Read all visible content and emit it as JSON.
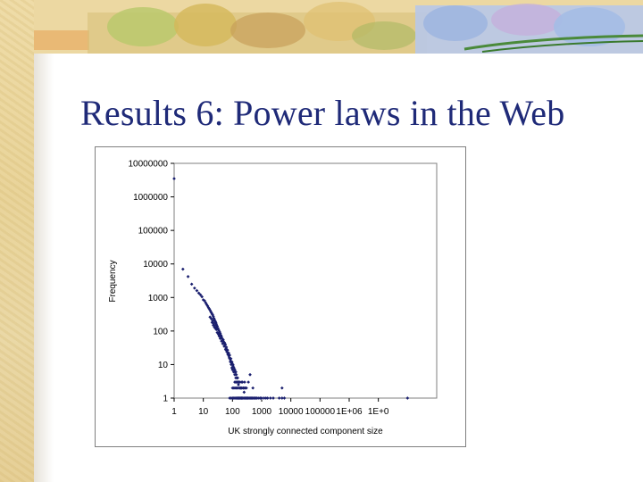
{
  "slide": {
    "title": "Results 6: Power laws in the Web",
    "colors": {
      "title": "#1f2a78",
      "marker": "#1a1f6e",
      "parchment": "#ead59f"
    }
  },
  "chart_data": {
    "type": "scatter",
    "xlabel": "UK strongly connected component size",
    "ylabel": "Frequency",
    "x_scale": "log",
    "y_scale": "log",
    "xlim": [
      1,
      1000000000
    ],
    "ylim": [
      1,
      10000000
    ],
    "x_tick_labels": [
      "1",
      "10",
      "100",
      "1000",
      "10000",
      "100000",
      "1E+06",
      "1E+0"
    ],
    "y_tick_labels": [
      "1",
      "10",
      "100",
      "1000",
      "10000",
      "100000",
      "1000000",
      "10000000"
    ],
    "grid": false,
    "legend": "none",
    "points": [
      [
        1,
        3500000
      ],
      [
        2,
        7000
      ],
      [
        3,
        4200
      ],
      [
        4,
        2500
      ],
      [
        5,
        1900
      ],
      [
        6,
        1600
      ],
      [
        7,
        1350
      ],
      [
        8,
        1200
      ],
      [
        9,
        1050
      ],
      [
        10,
        850
      ],
      [
        11,
        800
      ],
      [
        12,
        700
      ],
      [
        13,
        620
      ],
      [
        14,
        560
      ],
      [
        15,
        500
      ],
      [
        16,
        460
      ],
      [
        17,
        420
      ],
      [
        18,
        380
      ],
      [
        19,
        350
      ],
      [
        20,
        320
      ],
      [
        21,
        300
      ],
      [
        22,
        270
      ],
      [
        23,
        240
      ],
      [
        24,
        220
      ],
      [
        25,
        200
      ],
      [
        26,
        190
      ],
      [
        27,
        175
      ],
      [
        28,
        160
      ],
      [
        30,
        140
      ],
      [
        32,
        120
      ],
      [
        34,
        105
      ],
      [
        36,
        95
      ],
      [
        38,
        85
      ],
      [
        40,
        75
      ],
      [
        42,
        68
      ],
      [
        45,
        58
      ],
      [
        48,
        50
      ],
      [
        50,
        45
      ],
      [
        55,
        38
      ],
      [
        60,
        30
      ],
      [
        65,
        26
      ],
      [
        70,
        21
      ],
      [
        75,
        18
      ],
      [
        80,
        15
      ],
      [
        85,
        12
      ],
      [
        90,
        10
      ],
      [
        95,
        8
      ],
      [
        100,
        7
      ],
      [
        110,
        6
      ],
      [
        120,
        5
      ],
      [
        130,
        4
      ],
      [
        140,
        3
      ],
      [
        160,
        2.5
      ],
      [
        180,
        2
      ],
      [
        200,
        2
      ],
      [
        250,
        1.5
      ],
      [
        300,
        2
      ],
      [
        400,
        5
      ],
      [
        500,
        2
      ],
      [
        20,
        180
      ],
      [
        22,
        150
      ],
      [
        24,
        130
      ],
      [
        26,
        120
      ],
      [
        28,
        110
      ],
      [
        30,
        90
      ],
      [
        33,
        80
      ],
      [
        35,
        70
      ],
      [
        38,
        60
      ],
      [
        42,
        50
      ],
      [
        46,
        42
      ],
      [
        52,
        35
      ],
      [
        58,
        28
      ],
      [
        64,
        24
      ],
      [
        70,
        20
      ],
      [
        78,
        16
      ],
      [
        86,
        13
      ],
      [
        95,
        11
      ],
      [
        105,
        9
      ],
      [
        115,
        7
      ],
      [
        125,
        6
      ],
      [
        135,
        5
      ],
      [
        150,
        4
      ],
      [
        170,
        3
      ],
      [
        190,
        2
      ],
      [
        220,
        3
      ],
      [
        260,
        2
      ],
      [
        17,
        260
      ],
      [
        19,
        230
      ],
      [
        21,
        200
      ],
      [
        23,
        170
      ],
      [
        26,
        150
      ],
      [
        29,
        130
      ],
      [
        32,
        110
      ],
      [
        36,
        90
      ],
      [
        40,
        70
      ],
      [
        44,
        60
      ],
      [
        48,
        55
      ],
      [
        53,
        45
      ],
      [
        57,
        40
      ],
      [
        62,
        33
      ],
      [
        68,
        27
      ],
      [
        74,
        22
      ],
      [
        80,
        19
      ],
      [
        88,
        15
      ],
      [
        96,
        12
      ],
      [
        104,
        10
      ],
      [
        112,
        8
      ],
      [
        120,
        7
      ],
      [
        130,
        6
      ],
      [
        145,
        4
      ],
      [
        160,
        3
      ],
      [
        175,
        3
      ],
      [
        200,
        3
      ],
      [
        230,
        2
      ],
      [
        260,
        3
      ],
      [
        80,
        1
      ],
      [
        90,
        1
      ],
      [
        100,
        1
      ],
      [
        110,
        1
      ],
      [
        120,
        1
      ],
      [
        130,
        1
      ],
      [
        140,
        1
      ],
      [
        150,
        1
      ],
      [
        160,
        1
      ],
      [
        170,
        1
      ],
      [
        180,
        1
      ],
      [
        190,
        1
      ],
      [
        200,
        1
      ],
      [
        210,
        1
      ],
      [
        220,
        1
      ],
      [
        230,
        1
      ],
      [
        250,
        1
      ],
      [
        270,
        1
      ],
      [
        290,
        1
      ],
      [
        310,
        1
      ],
      [
        330,
        1
      ],
      [
        350,
        1
      ],
      [
        380,
        1
      ],
      [
        410,
        1
      ],
      [
        440,
        1
      ],
      [
        470,
        1
      ],
      [
        500,
        1
      ],
      [
        550,
        1
      ],
      [
        600,
        1
      ],
      [
        650,
        1
      ],
      [
        700,
        1
      ],
      [
        800,
        1
      ],
      [
        900,
        1
      ],
      [
        1000,
        1
      ],
      [
        1200,
        1
      ],
      [
        1400,
        1
      ],
      [
        1600,
        1
      ],
      [
        2000,
        1
      ],
      [
        2500,
        1
      ],
      [
        4000,
        1
      ],
      [
        5000,
        1
      ],
      [
        6000,
        1
      ],
      [
        100,
        2
      ],
      [
        110,
        2
      ],
      [
        120,
        2
      ],
      [
        130,
        2
      ],
      [
        140,
        2
      ],
      [
        150,
        2
      ],
      [
        170,
        2
      ],
      [
        190,
        2
      ],
      [
        210,
        2
      ],
      [
        240,
        2
      ],
      [
        280,
        2
      ],
      [
        5000,
        2
      ],
      [
        350,
        3
      ],
      [
        120,
        3
      ],
      [
        130,
        3
      ],
      [
        150,
        3
      ],
      [
        100000000,
        1
      ]
    ]
  }
}
